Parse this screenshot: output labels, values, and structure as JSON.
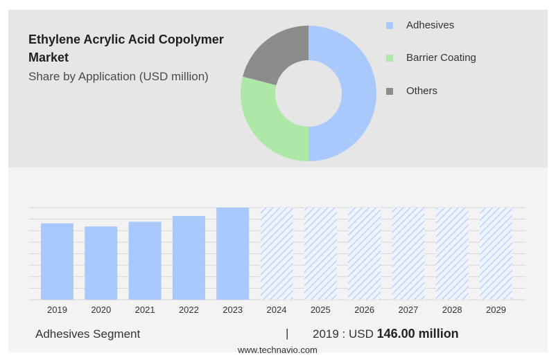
{
  "colors": {
    "adhesives": "#a9c8fb",
    "barrier_coating": "#aee8a6",
    "others": "#8c8c8c",
    "forecast_hatch": "#a9c8fb"
  },
  "header": {
    "title": "Ethylene Acrylic Acid Copolymer Market",
    "subtitle": "Share by Application (USD million)"
  },
  "legend": [
    {
      "label": "Adhesives",
      "color": "#a9c8fb"
    },
    {
      "label": "Barrier Coating",
      "color": "#aee8a6"
    },
    {
      "label": "Others",
      "color": "#8c8c8c"
    }
  ],
  "chart_data": [
    {
      "type": "pie",
      "donut": true,
      "categories": [
        "Adhesives",
        "Barrier Coating",
        "Others"
      ],
      "values": [
        50,
        29,
        21
      ]
    },
    {
      "type": "bar",
      "categories": [
        "2019",
        "2020",
        "2021",
        "2022",
        "2023",
        "2024",
        "2025",
        "2026",
        "2027",
        "2028",
        "2029"
      ],
      "values": [
        146,
        140,
        149,
        160,
        176,
        null,
        null,
        null,
        null,
        null,
        null
      ],
      "forecast": [
        false,
        false,
        false,
        false,
        false,
        true,
        true,
        true,
        true,
        true,
        true
      ],
      "ylim": [
        0,
        176
      ],
      "grid": true
    }
  ],
  "footer": {
    "segment": "Adhesives Segment",
    "separator": "|",
    "year_prefix": "2019 : USD",
    "value": "146.00 million",
    "site": "www.technavio.com"
  }
}
